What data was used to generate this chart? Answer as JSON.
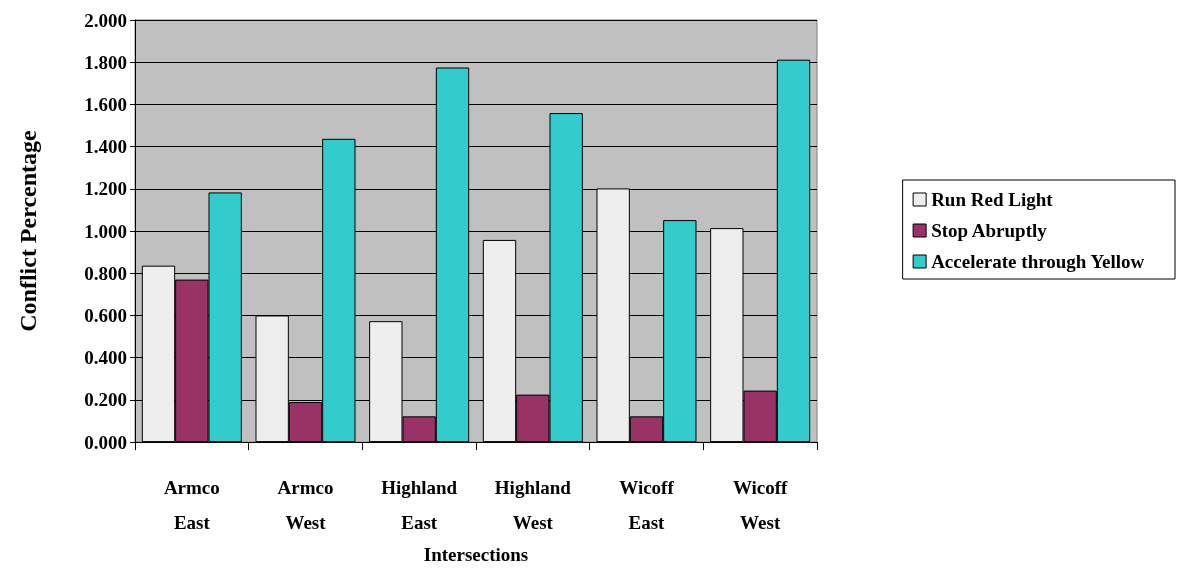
{
  "chart_data": {
    "type": "bar",
    "xlabel": "Intersections",
    "ylabel": "Conflict Percentage",
    "categories": [
      "Armco\nEast",
      "Armco\nWest",
      "Highland\nEast",
      "Highland\nWest",
      "Wicoff\nEast",
      "Wicoff\nWest"
    ],
    "series": [
      {
        "name": "Run Red Light",
        "color": "#eeeeee",
        "values": [
          0.836,
          0.6,
          0.573,
          0.958,
          1.202,
          1.014
        ]
      },
      {
        "name": "Stop Abruptly",
        "color": "#993366",
        "values": [
          0.77,
          0.19,
          0.122,
          0.225,
          0.122,
          0.244
        ]
      },
      {
        "name": "Accelerate through Yellow",
        "color": "#33cccc",
        "values": [
          1.183,
          1.437,
          1.775,
          1.559,
          1.052,
          1.812
        ]
      }
    ],
    "ylim": [
      0,
      2
    ],
    "yticks": [
      {
        "value": 0,
        "label": "0.000"
      },
      {
        "value": 0.2,
        "label": "0.200"
      },
      {
        "value": 0.4,
        "label": "0.400"
      },
      {
        "value": 0.6,
        "label": "0.600"
      },
      {
        "value": 0.8,
        "label": "0.800"
      },
      {
        "value": 1,
        "label": "1.000"
      },
      {
        "value": 1.2,
        "label": "1.200"
      },
      {
        "value": 1.4,
        "label": "1.400"
      },
      {
        "value": 1.6,
        "label": "1.600"
      },
      {
        "value": 1.8,
        "label": "1.800"
      },
      {
        "value": 2,
        "label": "2.000"
      }
    ],
    "grid": "y",
    "legend": "right"
  }
}
